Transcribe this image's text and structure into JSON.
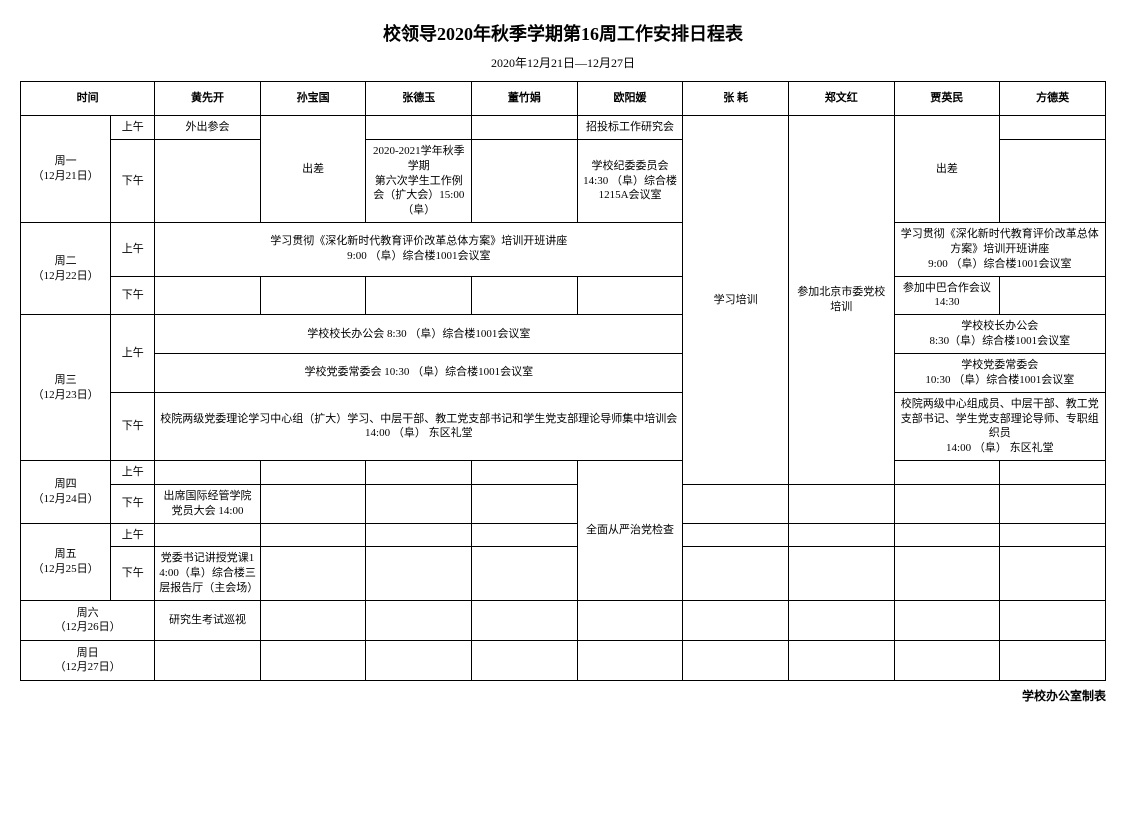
{
  "title": "校领导2020年秋季学期第16周工作安排日程表",
  "date_range": "2020年12月21日—12月27日",
  "headers": {
    "time": "时间",
    "people": [
      "黄先开",
      "孙宝国",
      "张德玉",
      "董竹娟",
      "欧阳媛",
      "张  耗",
      "郑文红",
      "贾英民",
      "方德英"
    ]
  },
  "slots": {
    "am": "上午",
    "pm": "下午"
  },
  "days": {
    "mon": "周一\n（12月21日）",
    "tue": "周二\n（12月22日）",
    "wed": "周三\n（12月23日）",
    "thu": "周四\n（12月24日）",
    "fri": "周五\n（12月25日）",
    "sat": "周六\n（12月26日）",
    "sun": "周日\n（12月27日）"
  },
  "cells": {
    "mon_am_p0": "外出参会",
    "mon_p1": "出差",
    "mon_am_p4": "招投标工作研究会",
    "mon_p7": "出差",
    "mon_pm_p2": "2020-2021学年秋季学期\n第六次学生工作例会（扩大会）15:00 （阜）",
    "mon_pm_p4": "学校纪委委员会\n14:30 （阜）综合楼1215A会议室",
    "tue_am_merge": "学习贯彻《深化新时代教育评价改革总体方案》培训开班讲座\n9:00 （阜）综合楼1001会议室",
    "tue_am_right_merge": "学习贯彻《深化新时代教育评价改革总体方案》培训开班讲座\n9:00 （阜）综合楼1001会议室",
    "tue_pm_p7": "参加中巴合作会议\n14:30",
    "wed_am1_merge": "学校校长办公会 8:30 （阜）综合楼1001会议室",
    "wed_am1_right": "学校校长办公会\n8:30（阜）综合楼1001会议室",
    "wed_am2_merge": "学校党委常委会 10:30 （阜）综合楼1001会议室",
    "wed_am2_right": "学校党委常委会\n10:30 （阜）综合楼1001会议室",
    "wed_pm_merge": "校院两级党委理论学习中心组（扩大）学习、中层干部、教工党支部书记和学生党支部理论导师集中培训会\n14:00 （阜） 东区礼堂",
    "wed_pm_right": "校院两级中心组成员、中层干部、教工党支部书记、学生党支部理论导师、专职组织员\n14:00 （阜） 东区礼堂",
    "p5_span": "学习培训",
    "p6_span": "参加北京市委党校培训",
    "thu_pm_p0": "出席国际经管学院党员大会  14:00",
    "thfr_p4": "全面从严治党检查",
    "fri_pm_p0": "党委书记讲授党课14:00（阜）综合楼三层报告厅（主会场）",
    "sat_p0": "研究生考试巡视"
  },
  "footer": "学校办公室制表"
}
